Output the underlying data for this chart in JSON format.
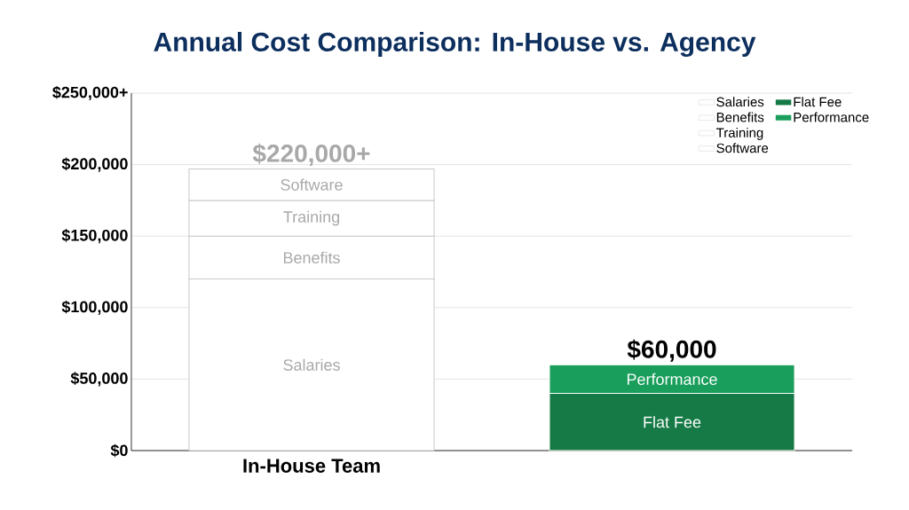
{
  "chart_data": {
    "type": "bar",
    "stacked": true,
    "title": "Annual Cost Comparison: In-House vs. Agency",
    "categories": [
      "In-House Team",
      null
    ],
    "series": [
      {
        "name": "Salaries",
        "color": "#ffffff",
        "values": [
          120000,
          null
        ]
      },
      {
        "name": "Benefits",
        "color": "#ffffff",
        "values": [
          30000,
          null
        ]
      },
      {
        "name": "Training",
        "color": "#ffffff",
        "values": [
          25000,
          null
        ]
      },
      {
        "name": "Software",
        "color": "#ffffff",
        "values": [
          22000,
          null
        ]
      },
      {
        "name": "Flat Fee",
        "color": "#157a45",
        "values": [
          null,
          40000
        ]
      },
      {
        "name": "Performance",
        "color": "#1a9e5c",
        "values": [
          null,
          20000
        ]
      }
    ],
    "totals": [
      "$220,000+",
      "$60,000"
    ],
    "ylim": [
      0,
      250000
    ],
    "yticks": [
      {
        "value": 0,
        "label": "$0"
      },
      {
        "value": 50000,
        "label": "$50,000"
      },
      {
        "value": 100000,
        "label": "$100,000"
      },
      {
        "value": 150000,
        "label": "$150,000"
      },
      {
        "value": 200000,
        "label": "$200,000"
      },
      {
        "value": 250000,
        "label": "$250,000+"
      }
    ],
    "grid": "y",
    "legend": "top right"
  }
}
